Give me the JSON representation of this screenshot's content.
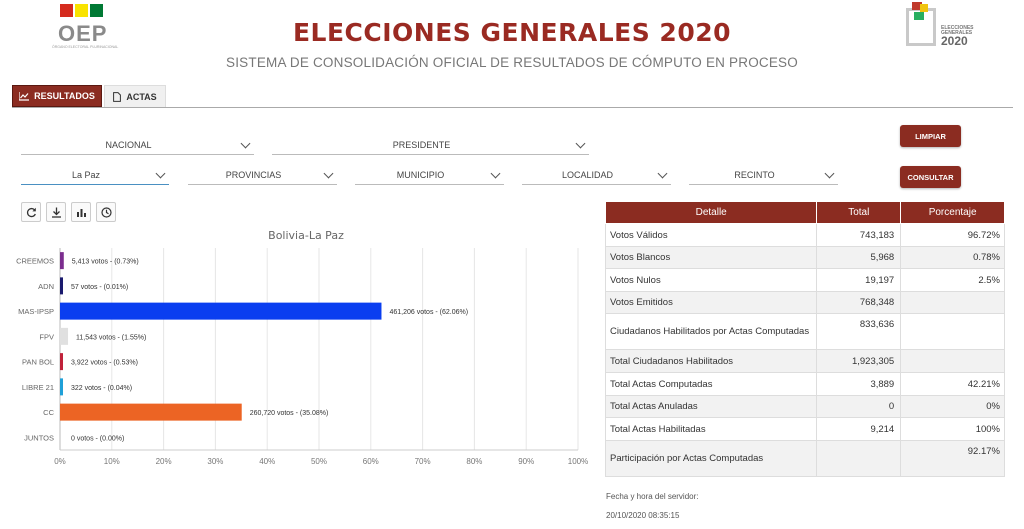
{
  "header": {
    "logo_text": "OEP",
    "logo_sub": "ÓRGANO ELECTORAL PLURINACIONAL",
    "title": "ELECCIONES GENERALES 2020",
    "subtitle": "SISTEMA DE CONSOLIDACIÓN OFICIAL DE RESULTADOS DE CÓMPUTO EN PROCESO",
    "logo2020_line1": "ELECCIONES",
    "logo2020_line2": "GENERALES",
    "logo2020_year": "2020"
  },
  "tabs": [
    {
      "label": "RESULTADOS",
      "icon": "chart-icon",
      "active": true
    },
    {
      "label": "ACTAS",
      "icon": "document-icon",
      "active": false
    }
  ],
  "filters": {
    "scope": "NACIONAL",
    "office": "PRESIDENTE",
    "department": "La Paz",
    "province": "PROVINCIAS",
    "municipality": "MUNICIPIO",
    "locality": "LOCALIDAD",
    "precinct": "RECINTO",
    "clear_label": "LIMPIAR",
    "query_label": "CONSULTAR"
  },
  "toolbar": [
    "refresh-icon",
    "download-icon",
    "bar-chart-icon",
    "clock-icon"
  ],
  "colors": {
    "brand": "#8b2c21",
    "title": "#9a2a22"
  },
  "chart_data": {
    "type": "bar",
    "orientation": "horizontal",
    "title": "Bolivia-La Paz",
    "categories": [
      "CREEMOS",
      "ADN",
      "MAS-IPSP",
      "FPV",
      "PAN BOL",
      "LIBRE 21",
      "CC",
      "JUNTOS"
    ],
    "values": [
      0.73,
      0.01,
      62.06,
      1.55,
      0.53,
      0.04,
      35.08,
      0.0
    ],
    "labels": [
      "5,413 votos - (0.73%)",
      "57 votos - (0.01%)",
      "461,206 votos - (62.06%)",
      "11,543 votos - (1.55%)",
      "3,922 votos - (0.53%)",
      "322 votos - (0.04%)",
      "260,720 votos - (35.08%)",
      "0 votos - (0.00%)"
    ],
    "colors": [
      "#7b2d8e",
      "#1a1a6e",
      "#0a3ef0",
      "#e0e0e0",
      "#c0223a",
      "#1fa0d8",
      "#ec6424",
      "#333333"
    ],
    "xlim": [
      0,
      100
    ],
    "xticks": [
      "0%",
      "10%",
      "20%",
      "30%",
      "40%",
      "50%",
      "60%",
      "70%",
      "80%",
      "90%",
      "100%"
    ],
    "grid": true
  },
  "table": {
    "headers": [
      "Detalle",
      "Total",
      "Porcentaje"
    ],
    "rows": [
      {
        "detail": "Votos Válidos",
        "total": "743,183",
        "pct": "96.72%"
      },
      {
        "detail": "Votos Blancos",
        "total": "5,968",
        "pct": "0.78%"
      },
      {
        "detail": "Votos Nulos",
        "total": "19,197",
        "pct": "2.5%"
      },
      {
        "detail": "Votos Emitidos",
        "total": "768,348",
        "pct": ""
      },
      {
        "detail": "Ciudadanos Habilitados por Actas Computadas",
        "total": "833,636",
        "pct": ""
      },
      {
        "detail": "Total Ciudadanos Habilitados",
        "total": "1,923,305",
        "pct": ""
      },
      {
        "detail": "Total Actas Computadas",
        "total": "3,889",
        "pct": "42.21%"
      },
      {
        "detail": "Total Actas Anuladas",
        "total": "0",
        "pct": "0%"
      },
      {
        "detail": "Total Actas Habilitadas",
        "total": "9,214",
        "pct": "100%"
      },
      {
        "detail": "Participación por Actas Computadas",
        "total": "",
        "pct": "92.17%"
      }
    ]
  },
  "server": {
    "label": "Fecha y hora del servidor:",
    "value": "20/10/2020 08:35:15"
  }
}
